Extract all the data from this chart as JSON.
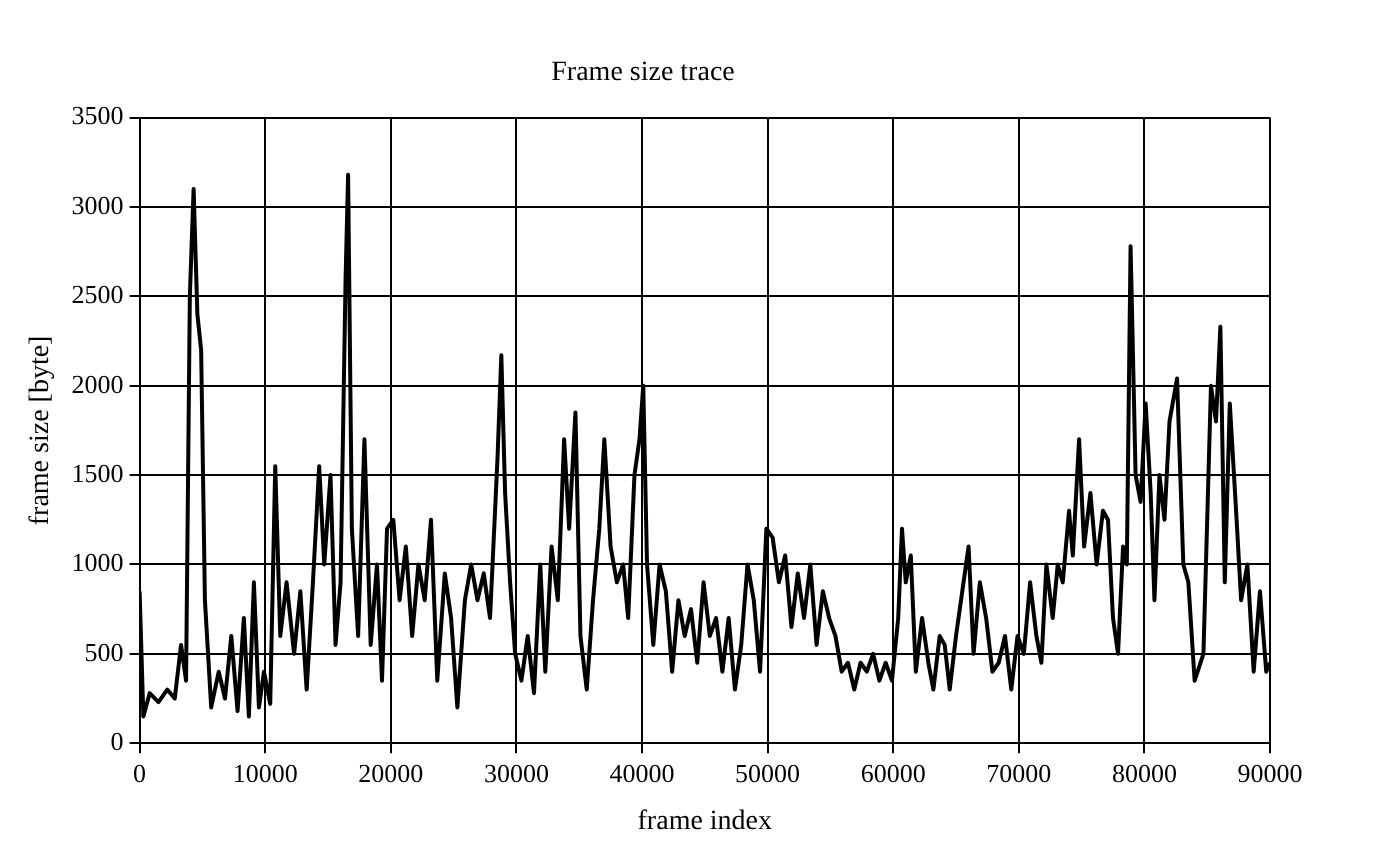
{
  "chart_data": {
    "type": "line",
    "title": "Frame size trace",
    "xlabel": "frame index",
    "ylabel": "frame size [byte]",
    "xlim": [
      0,
      90000
    ],
    "xticks": [
      0,
      10000,
      20000,
      30000,
      40000,
      50000,
      60000,
      70000,
      80000,
      90000
    ],
    "ylim": [
      0,
      3500
    ],
    "yticks": [
      0,
      500,
      1000,
      1500,
      2000,
      2500,
      3000,
      3500
    ],
    "grid": true,
    "legend": false,
    "marker": "none",
    "line_style": "solid",
    "series": [
      {
        "color": "#000000",
        "x": [
          0,
          300,
          800,
          1500,
          2200,
          2800,
          3300,
          3700,
          4000,
          4300,
          4600,
          4900,
          5200,
          5700,
          6300,
          6800,
          7300,
          7800,
          8300,
          8700,
          9100,
          9500,
          9900,
          10400,
          10800,
          11200,
          11700,
          12300,
          12800,
          13300,
          13800,
          14300,
          14700,
          15200,
          15600,
          16000,
          16400,
          16600,
          16900,
          17400,
          17900,
          18400,
          18900,
          19300,
          19700,
          20200,
          20700,
          21200,
          21700,
          22200,
          22700,
          23200,
          23700,
          24300,
          24800,
          25300,
          25900,
          26400,
          26900,
          27400,
          27900,
          28500,
          28800,
          29100,
          29500,
          29900,
          30400,
          30900,
          31400,
          31900,
          32300,
          32800,
          33300,
          33800,
          34200,
          34700,
          35100,
          35600,
          36100,
          36600,
          37000,
          37500,
          38000,
          38500,
          38900,
          39400,
          39800,
          40100,
          40400,
          40900,
          41400,
          41900,
          42400,
          42900,
          43400,
          43900,
          44400,
          44900,
          45400,
          45900,
          46400,
          46900,
          47400,
          47900,
          48400,
          48900,
          49400,
          49900,
          50400,
          50900,
          51400,
          51900,
          52400,
          52900,
          53400,
          53900,
          54400,
          54900,
          55400,
          55900,
          56400,
          56900,
          57400,
          57900,
          58400,
          58900,
          59400,
          59900,
          60400,
          60700,
          61000,
          61400,
          61800,
          62300,
          62800,
          63200,
          63700,
          64100,
          64500,
          65000,
          65500,
          66000,
          66400,
          66900,
          67400,
          67900,
          68400,
          68900,
          69400,
          69900,
          70400,
          70900,
          71400,
          71800,
          72200,
          72700,
          73100,
          73500,
          74000,
          74300,
          74800,
          75200,
          75700,
          76200,
          76700,
          77100,
          77500,
          77900,
          78300,
          78600,
          78900,
          79300,
          79700,
          80100,
          80500,
          80800,
          81200,
          81600,
          82000,
          82600,
          83100,
          83500,
          84000,
          84700,
          85300,
          85700,
          86050,
          86400,
          86800,
          87300,
          87700,
          88200,
          88700,
          89200,
          89700,
          90000
        ],
        "values": [
          850,
          150,
          280,
          230,
          300,
          250,
          550,
          350,
          2500,
          3100,
          2400,
          2200,
          800,
          200,
          400,
          250,
          600,
          180,
          700,
          150,
          900,
          200,
          400,
          220,
          1550,
          600,
          900,
          500,
          850,
          300,
          900,
          1550,
          1000,
          1500,
          550,
          900,
          2600,
          3180,
          1200,
          600,
          1700,
          550,
          1000,
          350,
          1200,
          1250,
          800,
          1100,
          600,
          1000,
          800,
          1250,
          350,
          950,
          700,
          200,
          800,
          1000,
          800,
          950,
          700,
          1600,
          2170,
          1400,
          900,
          500,
          350,
          600,
          280,
          1000,
          400,
          1100,
          800,
          1700,
          1200,
          1850,
          600,
          300,
          800,
          1200,
          1700,
          1100,
          900,
          1000,
          700,
          1500,
          1700,
          2000,
          1000,
          550,
          1000,
          850,
          400,
          800,
          600,
          750,
          450,
          900,
          600,
          700,
          400,
          700,
          300,
          550,
          1000,
          800,
          400,
          1200,
          1150,
          900,
          1050,
          650,
          950,
          700,
          1000,
          550,
          850,
          700,
          600,
          400,
          450,
          300,
          450,
          400,
          500,
          350,
          450,
          350,
          700,
          1200,
          900,
          1050,
          400,
          700,
          450,
          300,
          600,
          550,
          300,
          600,
          850,
          1100,
          500,
          900,
          700,
          400,
          450,
          600,
          300,
          600,
          500,
          900,
          600,
          450,
          1000,
          700,
          1000,
          900,
          1300,
          1050,
          1700,
          1100,
          1400,
          1000,
          1300,
          1250,
          700,
          500,
          1100,
          1000,
          2780,
          1500,
          1350,
          1900,
          1400,
          800,
          1500,
          1250,
          1800,
          2040,
          1000,
          900,
          350,
          500,
          2000,
          1800,
          2330,
          900,
          1900,
          1300,
          800,
          1000,
          400,
          850,
          400,
          450
        ]
      }
    ]
  }
}
